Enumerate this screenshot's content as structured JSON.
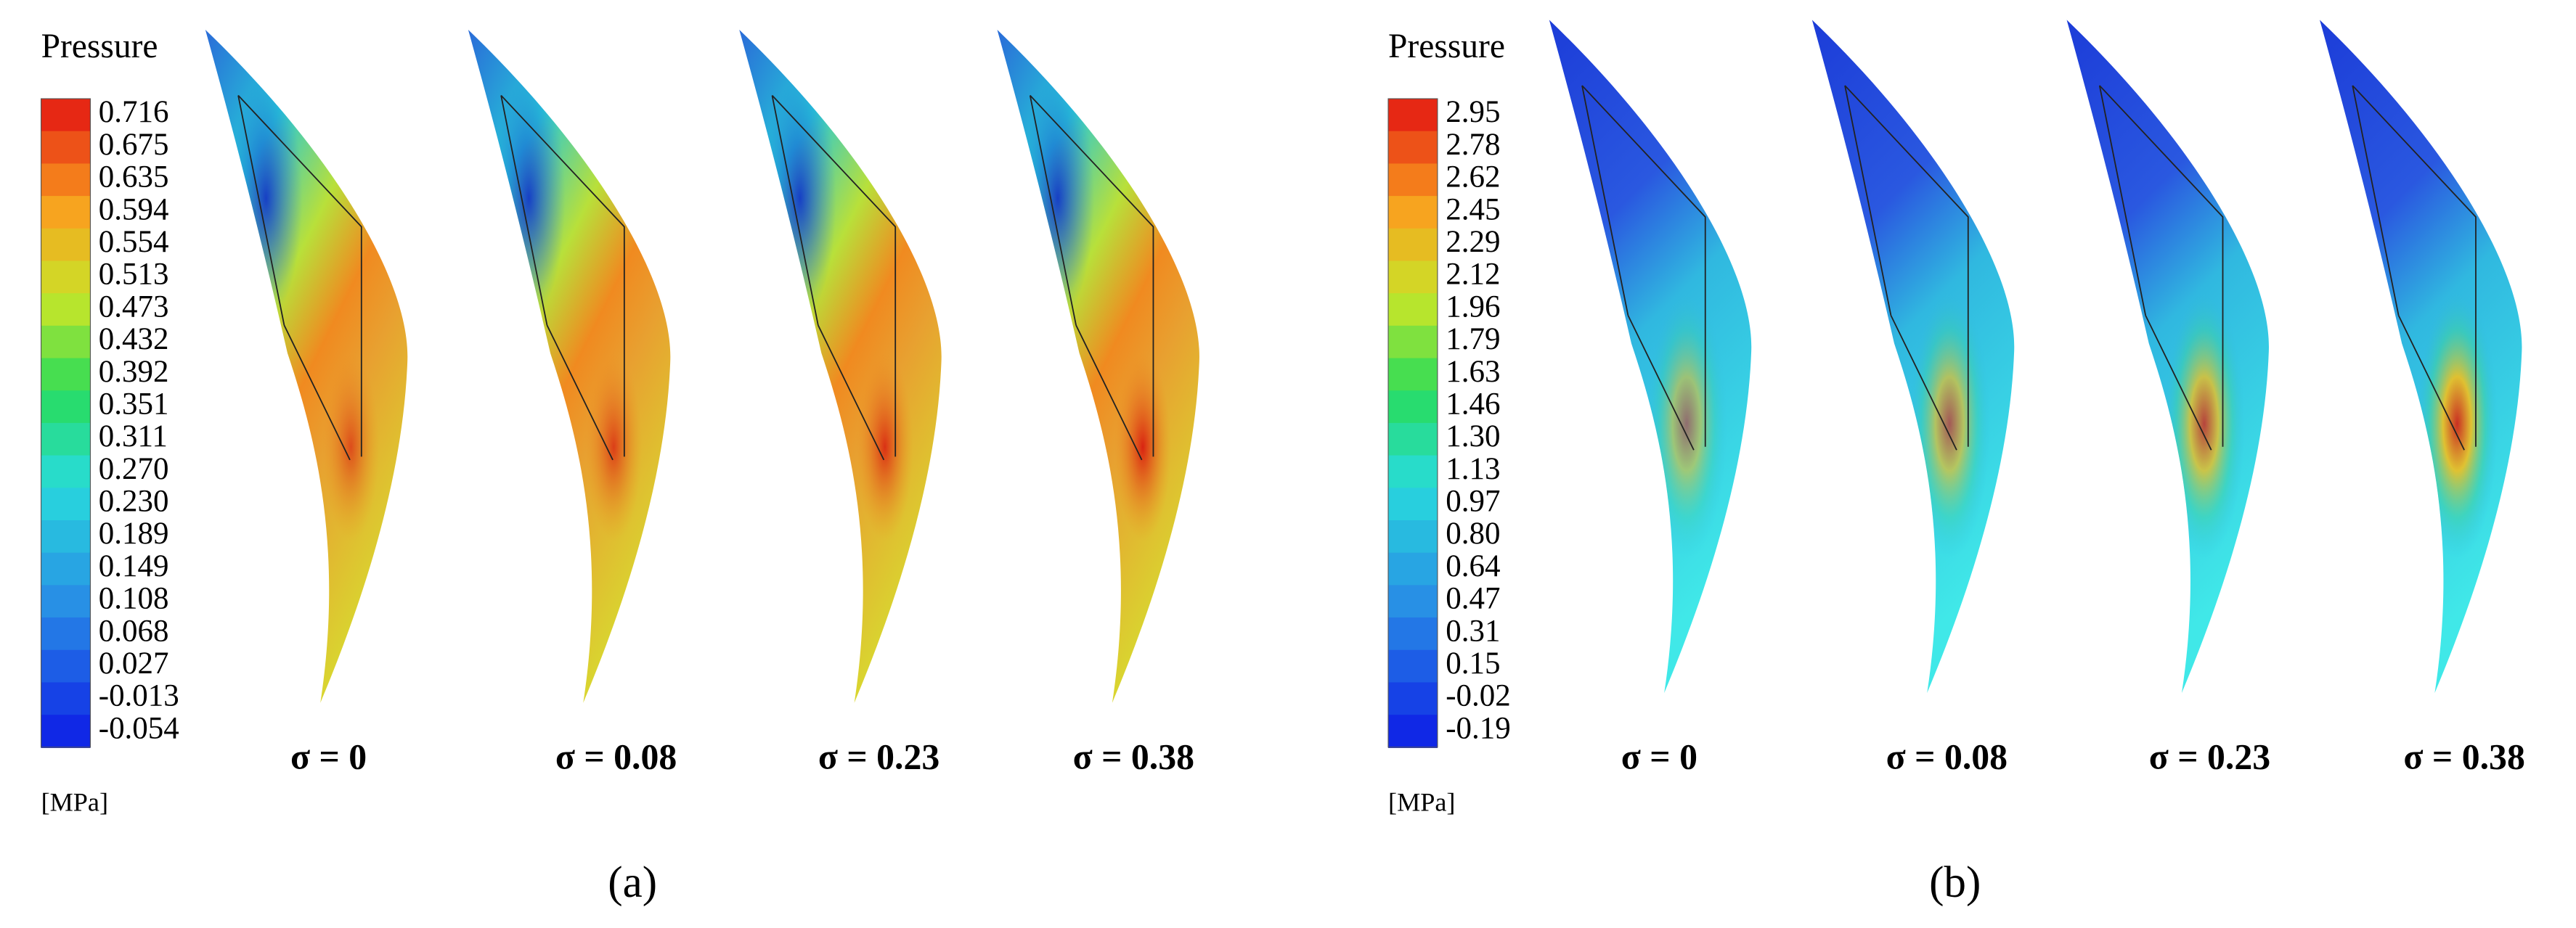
{
  "panels": [
    {
      "legend_title": "Pressure",
      "legend_labels": [
        "0.716",
        "0.675",
        "0.635",
        "0.594",
        "0.554",
        "0.513",
        "0.473",
        "0.432",
        "0.392",
        "0.351",
        "0.311",
        "0.270",
        "0.230",
        "0.189",
        "0.149",
        "0.108",
        "0.068",
        "0.027",
        "-0.013",
        "-0.054"
      ],
      "unit": "[MPa]",
      "blade_labels": [
        "σ = 0",
        "σ = 0.08",
        "σ = 0.23",
        "σ = 0.38"
      ],
      "caption": "(a)"
    },
    {
      "legend_title": "Pressure",
      "legend_labels": [
        "2.95",
        "2.78",
        "2.62",
        "2.45",
        "2.29",
        "2.12",
        "1.96",
        "1.79",
        "1.63",
        "1.46",
        "1.30",
        "1.13",
        "0.97",
        "0.80",
        "0.64",
        "0.47",
        "0.31",
        "0.15",
        "-0.02",
        "-0.19"
      ],
      "unit": "[MPa]",
      "blade_labels": [
        "σ = 0",
        "σ = 0.08",
        "σ = 0.23",
        "σ = 0.38"
      ],
      "caption": "(b)"
    }
  ]
}
